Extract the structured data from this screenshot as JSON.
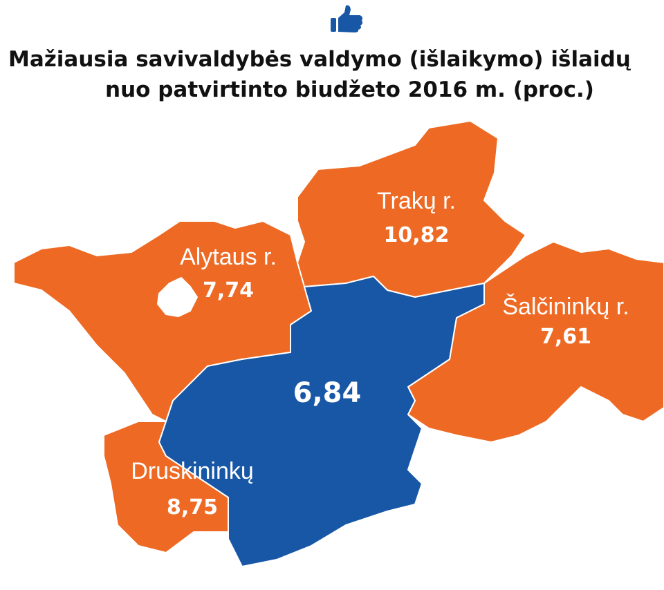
{
  "header": {
    "title_lines": [
      "Mažiausia savivaldybės valdymo (išlaikymo) išlaidų",
      "nuo patvirtinto biudžeto 2016 m. (proc.)"
    ]
  },
  "regions": [
    {
      "name": "Trakų r.",
      "value": "10,82",
      "color": "#ee6a24"
    },
    {
      "name": "Alytaus r.",
      "value": "7,74",
      "color": "#ee6a24"
    },
    {
      "name": "Šalčininkų r.",
      "value": "7,61",
      "color": "#ee6a24"
    },
    {
      "name": "Druskininkų",
      "value": "8,75",
      "color": "#ee6a24"
    },
    {
      "value": "6,84",
      "color": "#1757a6"
    }
  ]
}
